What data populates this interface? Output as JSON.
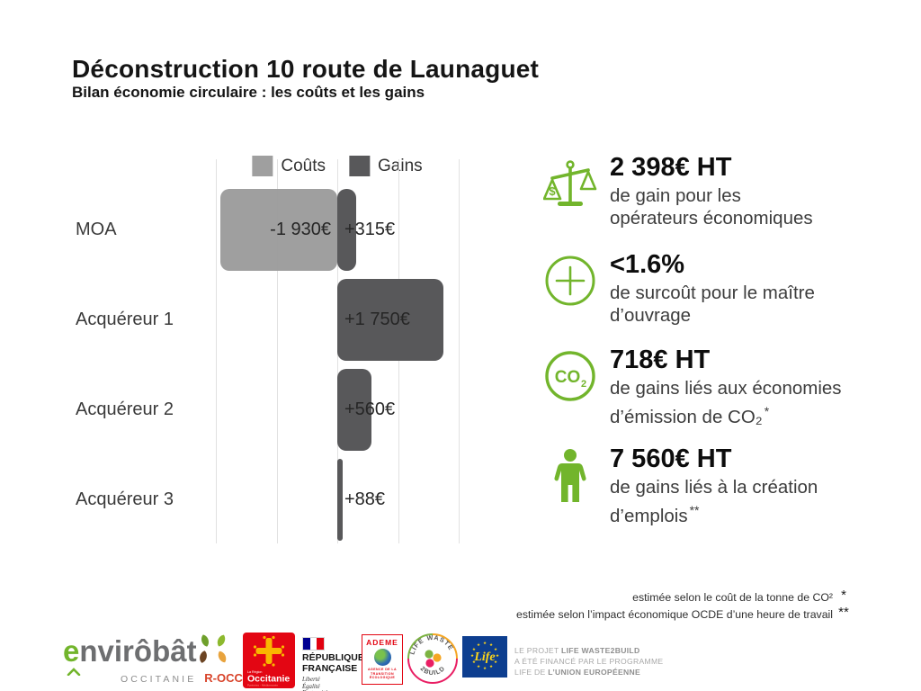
{
  "header": {
    "title": "Déconstruction 10 route de Launaguet",
    "subtitle": "Bilan économie circulaire : les coûts et les gains"
  },
  "chart_data": {
    "type": "bar",
    "orientation": "horizontal",
    "categories": [
      "MOA",
      "Acquéreur 1",
      "Acquéreur 2",
      "Acquéreur 3"
    ],
    "series": [
      {
        "name": "Coûts",
        "color": "rgba(154,154,154,0.95)",
        "values": [
          -1930,
          null,
          null,
          null
        ],
        "labels": [
          "-1 930€",
          "",
          "",
          ""
        ]
      },
      {
        "name": "Gains",
        "color": "#58585a",
        "values": [
          315,
          1750,
          560,
          88
        ],
        "labels": [
          "+315€",
          "+1 750€",
          "+560€",
          "+88€"
        ]
      }
    ],
    "xlim": [
      -2000,
      2000
    ],
    "gridlines": [
      -2000,
      -1000,
      0,
      1000,
      2000
    ],
    "legend": [
      "Coûts",
      "Gains"
    ],
    "legend_position": "top",
    "unit": "€"
  },
  "stats": [
    {
      "icon": "scale-icon",
      "value": "2 398€ HT",
      "desc_lines": [
        "de gain pour les",
        "opérateurs économiques"
      ],
      "marker": ""
    },
    {
      "icon": "plus-icon",
      "value": "<1.6%",
      "desc_lines": [
        "de surcoût pour le maître",
        "d’ouvrage"
      ],
      "marker": ""
    },
    {
      "icon": "co2-icon",
      "value": "718€ HT",
      "desc_lines": [
        "de gains liés aux économies",
        "d’émission de CO₂"
      ],
      "marker": "*"
    },
    {
      "icon": "person-icon",
      "value": "7 560€ HT",
      "desc_lines": [
        "de gains liés à la création",
        "d’emplois"
      ],
      "marker": "**"
    }
  ],
  "footnotes": [
    {
      "text": "estimée selon le coût de la tonne de CO²",
      "marker": "*"
    },
    {
      "text": "estimée selon l’impact économique OCDE d’une heure de travail",
      "marker": "**"
    }
  ],
  "footer": {
    "envirobat": {
      "e": "e",
      "mid": "nvir",
      "o": "ô",
      "rest": "bât",
      "region": "OCCITANIE",
      "rocci": "R-OCCI"
    },
    "occitanie": {
      "small_top": "La Région",
      "name": "Occitanie",
      "subtitle": "Pyrénées - Méditerranée"
    },
    "republique": {
      "line1": "RÉPUBLIQUE",
      "line2": "FRANÇAISE",
      "motto": [
        "Liberté",
        "Égalité",
        "Fraternité"
      ]
    },
    "ademe": {
      "name": "ADEME",
      "tagline": [
        "AGENCE DE LA",
        "TRANSITION",
        "ÉCOLOGIQUE"
      ]
    },
    "lifewaste": {
      "arc_top": "LIFE WASTE",
      "arc_bottom": "2BUILD"
    },
    "eu_life": {
      "name": "Life"
    },
    "eu_text": {
      "l1_prefix": "LE PROJET ",
      "l1_bold": "LIFE WASTE2BUILD",
      "l2": "A ÉTÉ FINANCÉ PAR LE PROGRAMME",
      "l3_prefix": "LIFE DE ",
      "l3_bold": "L’UNION EUROPÉENNE"
    }
  },
  "colors": {
    "green": "#72b52c",
    "couts_bar": "#9a9a9a",
    "gains_bar": "#58585a",
    "occitanie_red": "#e30613",
    "rocci_orange": "#d8432a",
    "eu_blue": "#0d3e8f",
    "star_yellow": "#ffd617"
  }
}
